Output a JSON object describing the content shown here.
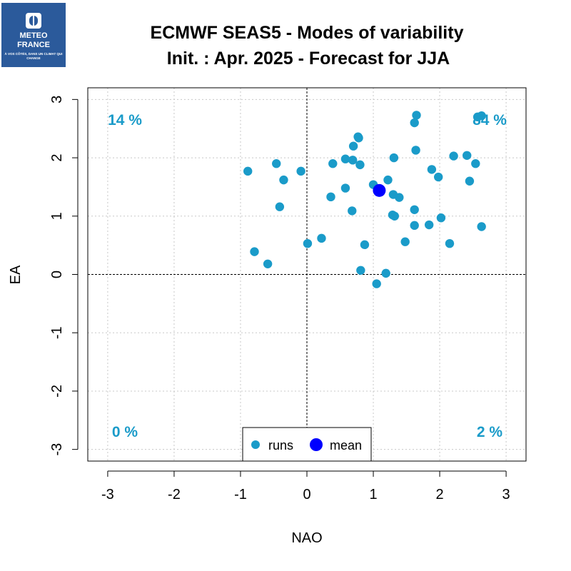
{
  "logo": {
    "line1": "METEO",
    "line2": "FRANCE",
    "tagline": "À VOS CÔTÉS, DANS UN CLIMAT QUI CHANGE",
    "icon": "meteo-france-logo-icon"
  },
  "colors": {
    "runs": "#1a9bc9",
    "mean": "#0000ff",
    "quadrant_text": "#1a9bc9"
  },
  "chart_data": {
    "type": "scatter",
    "title": "ECMWF SEAS5 - Modes of variability",
    "subtitle": "Init. : Apr. 2025 - Forecast for JJA",
    "xlabel": "NAO",
    "ylabel": "EA",
    "xlim": [
      -3.3,
      3.3
    ],
    "ylim": [
      -3.2,
      3.2
    ],
    "xticks": [
      "-3",
      "-2",
      "-1",
      "0",
      "1",
      "2",
      "3"
    ],
    "yticks": [
      "-3",
      "-2",
      "-1",
      "0",
      "1",
      "2",
      "3"
    ],
    "grid": true,
    "legend": {
      "position": "bottom-center",
      "entries": [
        "runs",
        "mean"
      ]
    },
    "quadrants": {
      "top_left": "14 %",
      "top_right": "84 %",
      "bottom_left": "0 %",
      "bottom_right": "2 %"
    },
    "series": [
      {
        "name": "runs",
        "points": [
          [
            1.65,
            2.73
          ],
          [
            1.62,
            2.6
          ],
          [
            2.57,
            2.7
          ],
          [
            2.63,
            2.72
          ],
          [
            0.78,
            2.34
          ],
          [
            0.77,
            2.36
          ],
          [
            0.7,
            2.2
          ],
          [
            1.64,
            2.13
          ],
          [
            2.21,
            2.03
          ],
          [
            2.41,
            2.04
          ],
          [
            1.31,
            2.0
          ],
          [
            0.58,
            1.98
          ],
          [
            0.69,
            1.96
          ],
          [
            0.8,
            1.88
          ],
          [
            0.39,
            1.9
          ],
          [
            -0.46,
            1.9
          ],
          [
            -0.89,
            1.77
          ],
          [
            -0.09,
            1.77
          ],
          [
            1.88,
            1.8
          ],
          [
            2.54,
            1.9
          ],
          [
            -0.35,
            1.62
          ],
          [
            1.98,
            1.67
          ],
          [
            1.22,
            1.62
          ],
          [
            2.45,
            1.6
          ],
          [
            1.0,
            1.54
          ],
          [
            0.58,
            1.48
          ],
          [
            0.36,
            1.33
          ],
          [
            1.3,
            1.37
          ],
          [
            1.39,
            1.32
          ],
          [
            -0.41,
            1.16
          ],
          [
            0.68,
            1.09
          ],
          [
            1.62,
            1.11
          ],
          [
            1.29,
            1.02
          ],
          [
            1.32,
            1.0
          ],
          [
            2.02,
            0.97
          ],
          [
            1.62,
            0.84
          ],
          [
            1.84,
            0.85
          ],
          [
            2.63,
            0.82
          ],
          [
            0.22,
            0.62
          ],
          [
            0.01,
            0.53
          ],
          [
            1.48,
            0.56
          ],
          [
            0.87,
            0.51
          ],
          [
            2.15,
            0.53
          ],
          [
            -0.79,
            0.39
          ],
          [
            -0.59,
            0.18
          ],
          [
            0.81,
            0.07
          ],
          [
            1.19,
            0.02
          ],
          [
            1.05,
            -0.16
          ]
        ]
      },
      {
        "name": "mean",
        "points": [
          [
            1.09,
            1.44
          ]
        ]
      }
    ]
  }
}
